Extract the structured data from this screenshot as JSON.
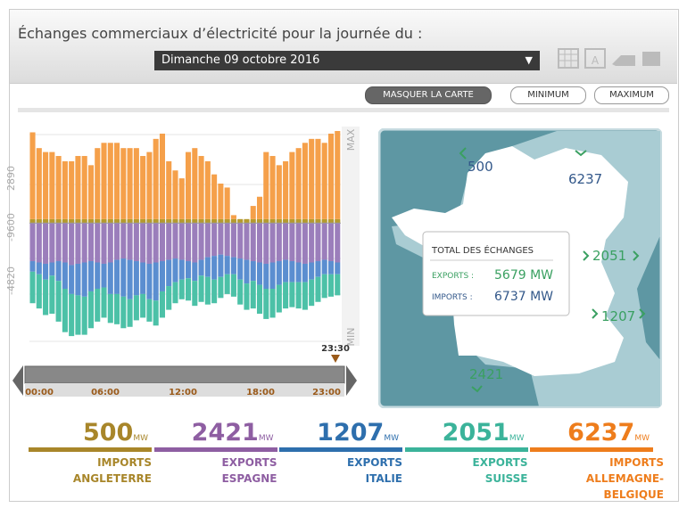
{
  "header": {
    "title": "Échanges commerciaux d’électricité pour la journée du :",
    "date": "Dimanche 09 octobre 2016"
  },
  "buttons": [
    "MASQUER LA CARTE",
    "MINIMUM",
    "MAXIMUM"
  ],
  "chart": {
    "axis_labels": [
      "MAX",
      "2890",
      "-9600",
      "-4820",
      "MIN"
    ],
    "ylim": [
      -9000,
      7000
    ],
    "series": [
      {
        "name": "ANGLETERRE",
        "color": "#b59a2e",
        "values": [
          300,
          300,
          300,
          300,
          300,
          300,
          300,
          300,
          300,
          300,
          300,
          300,
          300,
          300,
          300,
          300,
          300,
          300,
          300,
          300,
          300,
          300,
          300,
          300,
          300,
          300,
          300,
          300,
          300,
          300,
          300,
          300,
          300,
          300,
          300,
          300,
          300,
          300,
          300,
          300,
          300,
          300,
          300,
          300,
          300,
          300,
          300,
          300
        ]
      },
      {
        "name": "ALLEMAGNE-BELGIQUE",
        "color": "#f5a04a",
        "values": [
          6600,
          5400,
          5100,
          5100,
          4800,
          4400,
          4400,
          4800,
          4800,
          4100,
          5400,
          5800,
          5800,
          5800,
          5400,
          5400,
          5400,
          4800,
          5100,
          6100,
          6500,
          4400,
          3700,
          3100,
          5100,
          5400,
          4800,
          4400,
          3400,
          2700,
          2400,
          300,
          0,
          0,
          1000,
          1700,
          5100,
          4800,
          4100,
          4400,
          5100,
          5400,
          5800,
          6100,
          6100,
          5800,
          6500,
          6700
        ]
      },
      {
        "name": "ESPAGNE",
        "color": "#9b7ebb",
        "values": [
          -2900,
          -3000,
          -3100,
          -3000,
          -2900,
          -3000,
          -3200,
          -3100,
          -3000,
          -2900,
          -3000,
          -3100,
          -3000,
          -2800,
          -2700,
          -2800,
          -2900,
          -3000,
          -3100,
          -3000,
          -2900,
          -2800,
          -2700,
          -2800,
          -2900,
          -3000,
          -2800,
          -2600,
          -2500,
          -2400,
          -2500,
          -2600,
          -2700,
          -2800,
          -2900,
          -3000,
          -3100,
          -3000,
          -2900,
          -2800,
          -2900,
          -3000,
          -3100,
          -3000,
          -2900,
          -2800,
          -2900,
          -3000
        ]
      },
      {
        "name": "ITALIE",
        "color": "#5b8ed0",
        "values": [
          -800,
          -900,
          -1200,
          -1000,
          -1500,
          -2000,
          -2200,
          -2400,
          -2600,
          -2300,
          -2000,
          -1800,
          -2400,
          -2600,
          -2900,
          -3000,
          -2600,
          -2400,
          -2700,
          -2900,
          -2300,
          -2000,
          -1800,
          -1500,
          -1300,
          -1400,
          -1200,
          -1500,
          -1800,
          -1700,
          -1400,
          -1300,
          -1600,
          -1800,
          -1500,
          -1700,
          -1900,
          -2000,
          -1800,
          -1700,
          -1600,
          -1500,
          -1400,
          -1300,
          -1200,
          -1100,
          -1000,
          -900
        ]
      },
      {
        "name": "SUISSE",
        "color": "#4cc1a7",
        "values": [
          -2400,
          -2600,
          -2700,
          -2900,
          -3100,
          -3300,
          -3200,
          -3000,
          -2900,
          -2800,
          -2500,
          -2300,
          -2200,
          -2300,
          -2400,
          -2100,
          -1900,
          -1800,
          -1700,
          -1900,
          -2000,
          -1800,
          -1600,
          -1500,
          -1700,
          -1900,
          -2000,
          -2100,
          -1800,
          -1600,
          -1500,
          -1700,
          -1900,
          -2000,
          -2100,
          -2200,
          -2300,
          -2200,
          -2100,
          -2000,
          -1900,
          -2000,
          -2100,
          -2000,
          -1900,
          -1800,
          -1700,
          -1600
        ]
      }
    ]
  },
  "slider": {
    "current": "23:30",
    "labels": [
      "00:00",
      "06:00",
      "12:00",
      "18:00",
      "23:00"
    ]
  },
  "map": {
    "flows": [
      500,
      6237,
      2051,
      1207,
      2421
    ],
    "box": {
      "title": "TOTAL DES ÉCHANGES",
      "rows": [
        {
          "label": "EXPORTS :",
          "value": 5679,
          "unit": "MW"
        },
        {
          "label": "IMPORTS :",
          "value": 6737,
          "unit": "MW"
        }
      ]
    }
  },
  "summary": [
    {
      "value": 500,
      "unit": "MW",
      "kind": "IMPORTS",
      "country": "ANGLETERRE",
      "color": "#a8862a"
    },
    {
      "value": 2421,
      "unit": "MW",
      "kind": "EXPORTS",
      "country": "ESPAGNE",
      "color": "#8e5ea2"
    },
    {
      "value": 1207,
      "unit": "MW",
      "kind": "EXPORTS",
      "country": "ITALIE",
      "color": "#2e6fad"
    },
    {
      "value": 2051,
      "unit": "MW",
      "kind": "EXPORTS",
      "country": "SUISSE",
      "color": "#3bb39a"
    },
    {
      "value": 6237,
      "unit": "MW",
      "kind": "IMPORTS",
      "country": "ALLEMAGNE-BELGIQUE",
      "color": "#ee7d1c"
    }
  ]
}
